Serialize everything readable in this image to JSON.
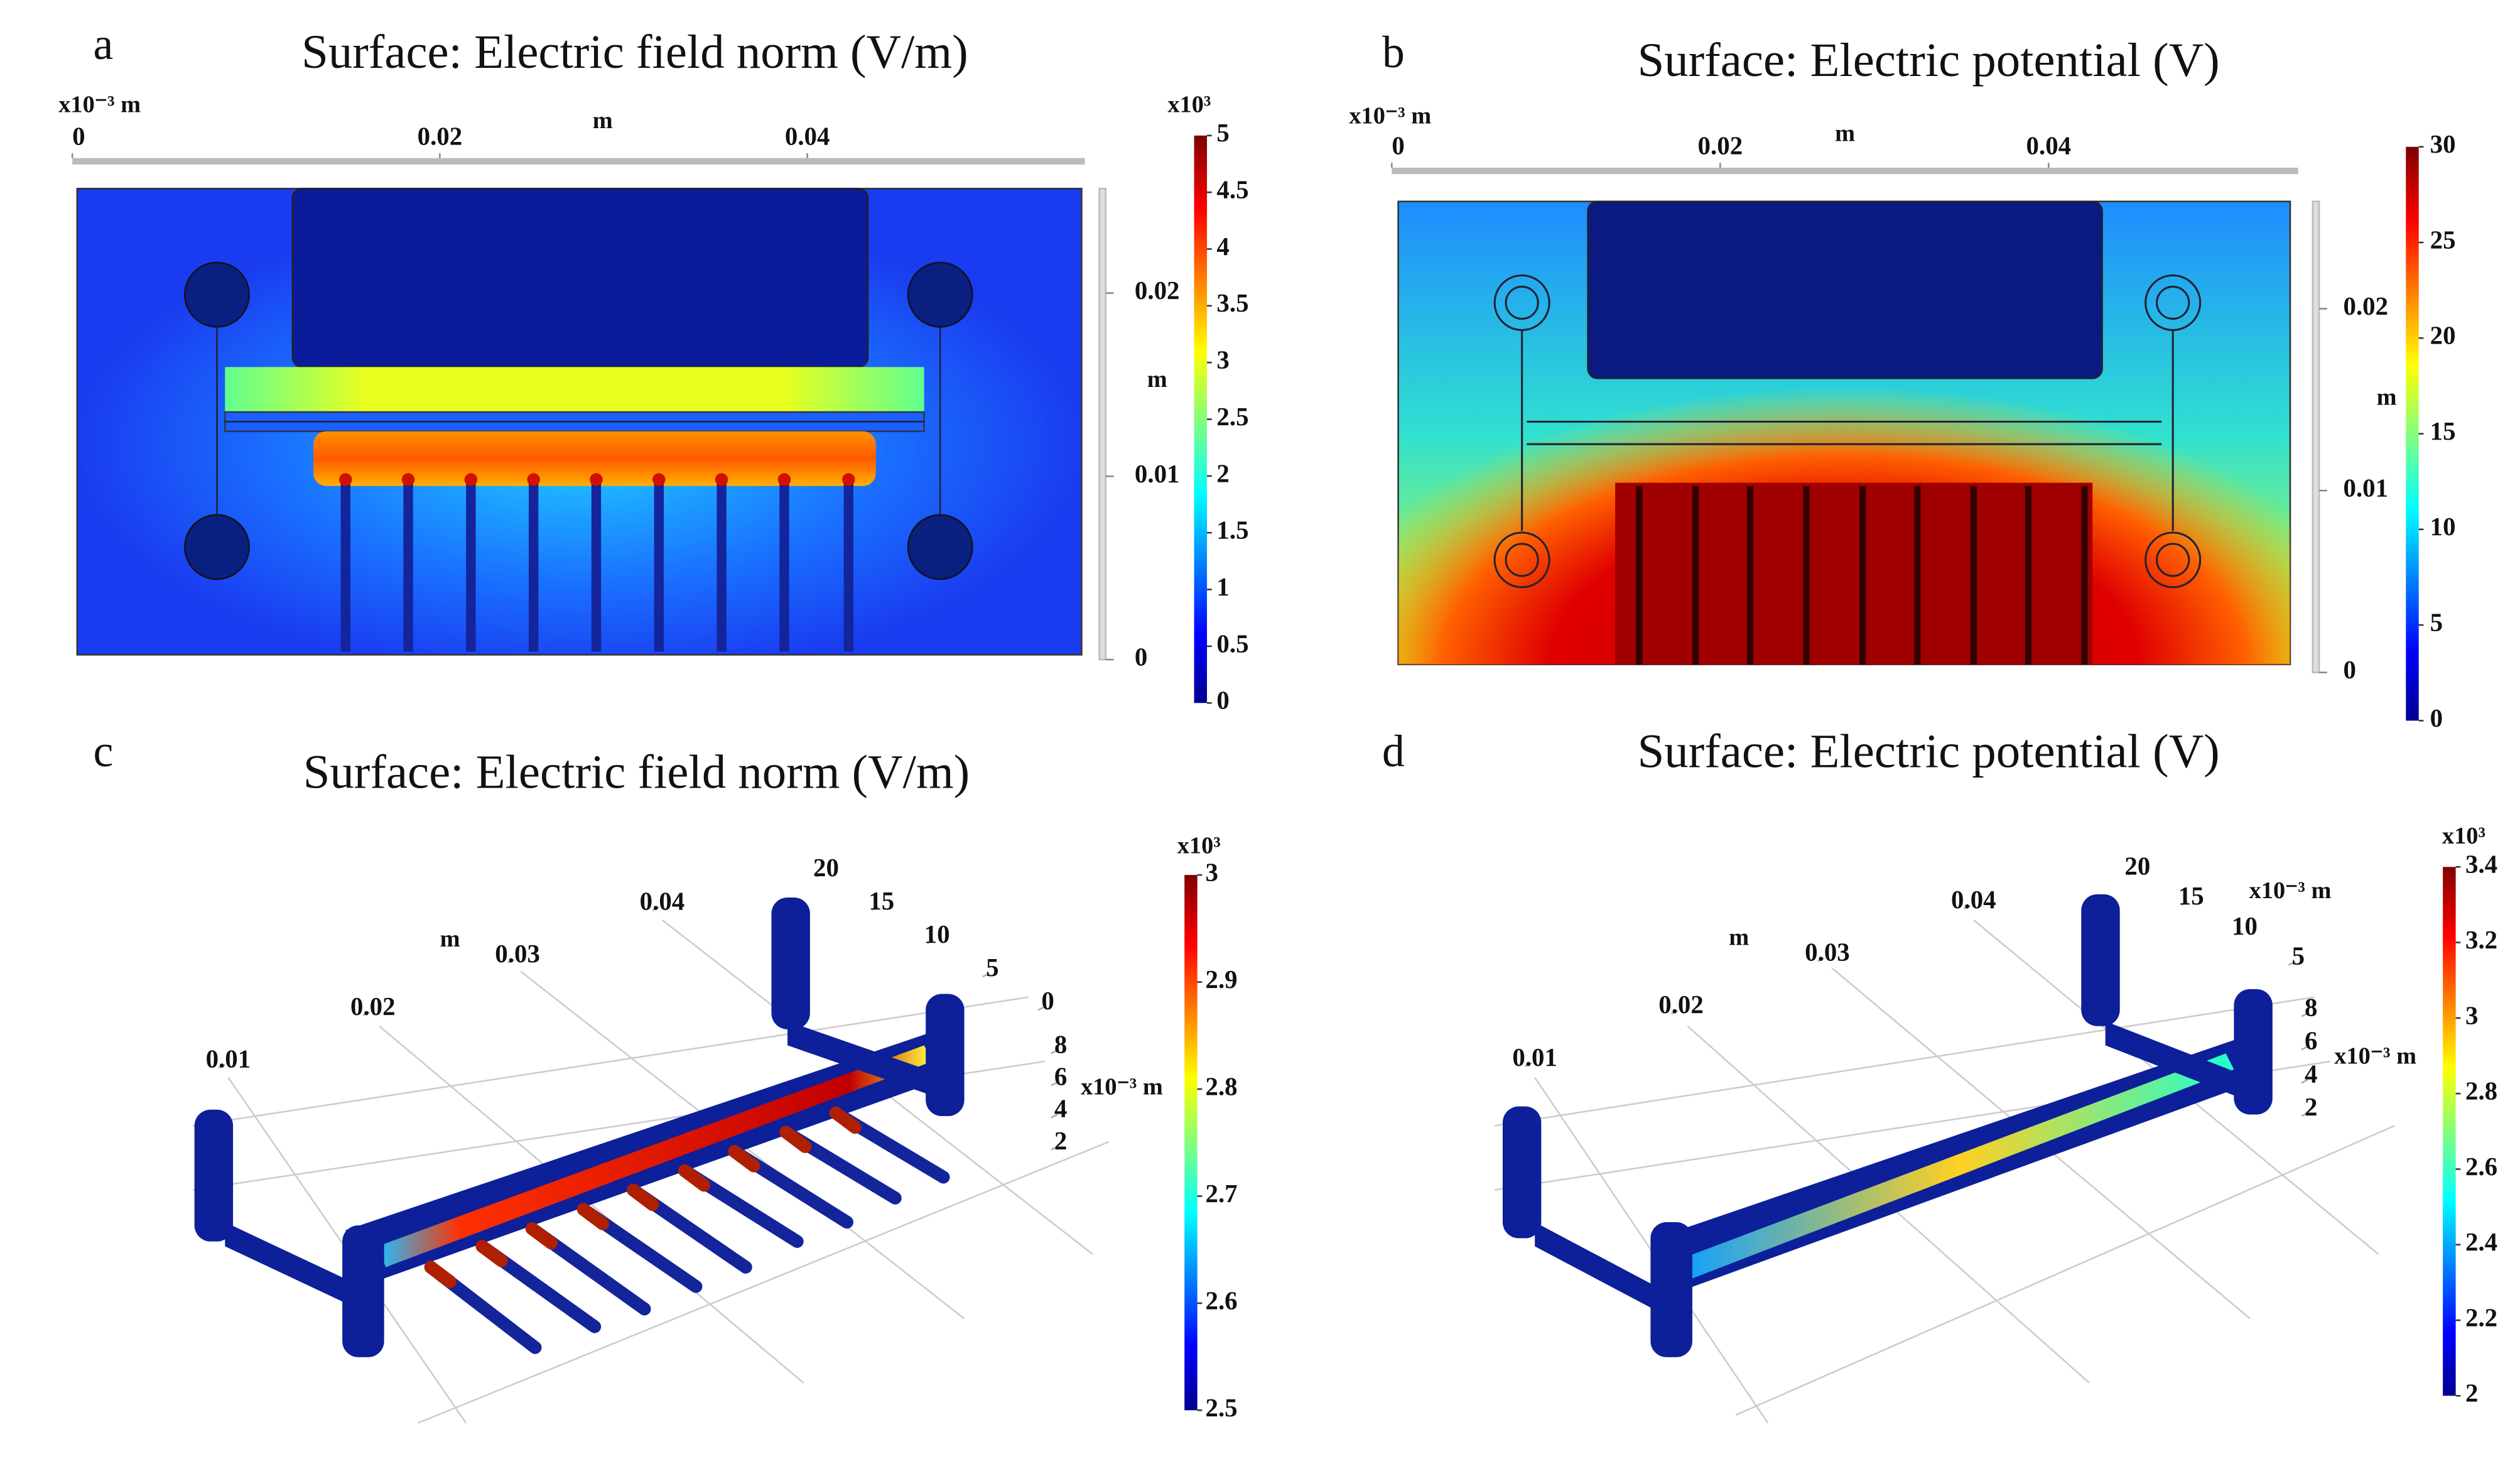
{
  "panels": [
    {
      "label": "a",
      "title": "Surface: Electric field norm (V/m)",
      "x_axis": {
        "scale": "x10⁻³ m",
        "name": "m",
        "ticks": [
          0,
          0.02,
          0.04
        ],
        "lim": [
          0,
          0.0551
        ]
      },
      "y_axis": {
        "name": "m",
        "ticks": [
          0.02,
          0.01,
          0
        ],
        "lim": [
          0,
          0.0257
        ]
      },
      "colorbar": {
        "multiplier": "x10³",
        "ticks": [
          5,
          4.5,
          4,
          3.5,
          3,
          2.5,
          2,
          1.5,
          1,
          0.5,
          0
        ],
        "lim": [
          0,
          5
        ]
      }
    },
    {
      "label": "b",
      "title": "Surface: Electric potential (V)",
      "x_axis": {
        "scale": "x10⁻³ m",
        "name": "m",
        "ticks": [
          0,
          0.02,
          0.04
        ],
        "lim": [
          0,
          0.0552
        ]
      },
      "y_axis": {
        "name": "m",
        "ticks": [
          0.02,
          0.01,
          0
        ],
        "lim": [
          0,
          0.0259
        ]
      },
      "colorbar": {
        "ticks": [
          30,
          25,
          20,
          15,
          10,
          5,
          0
        ],
        "lim": [
          0,
          30
        ]
      }
    },
    {
      "label": "c",
      "title": "Surface: Electric field norm (V/m)",
      "axes3d": {
        "x": {
          "name": "m",
          "ticks": [
            0.01,
            0.02,
            0.03,
            0.04
          ]
        },
        "depth": {
          "ticks": [
            20,
            15,
            10,
            5,
            0
          ]
        },
        "z": {
          "name": "x10⁻³ m",
          "ticks": [
            8,
            6,
            4,
            2
          ]
        }
      },
      "colorbar": {
        "multiplier": "x10³",
        "ticks": [
          3,
          2.9,
          2.8,
          2.7,
          2.6,
          2.5
        ],
        "lim": [
          2.5,
          3
        ]
      }
    },
    {
      "label": "d",
      "title": "Surface: Electric potential (V)",
      "axes3d": {
        "x": {
          "name": "m",
          "ticks": [
            0.01,
            0.02,
            0.03,
            0.04
          ]
        },
        "depth": {
          "name": "x10⁻³ m",
          "ticks": [
            20,
            15,
            10,
            5
          ]
        },
        "z": {
          "name": "x10⁻³ m",
          "ticks": [
            8,
            6,
            4,
            2
          ]
        }
      },
      "colorbar": {
        "multiplier": "x10³",
        "ticks": [
          3.4,
          3.2,
          3,
          2.8,
          2.6,
          2.4,
          2.2,
          2
        ],
        "lim": [
          2,
          3.4
        ]
      }
    }
  ]
}
